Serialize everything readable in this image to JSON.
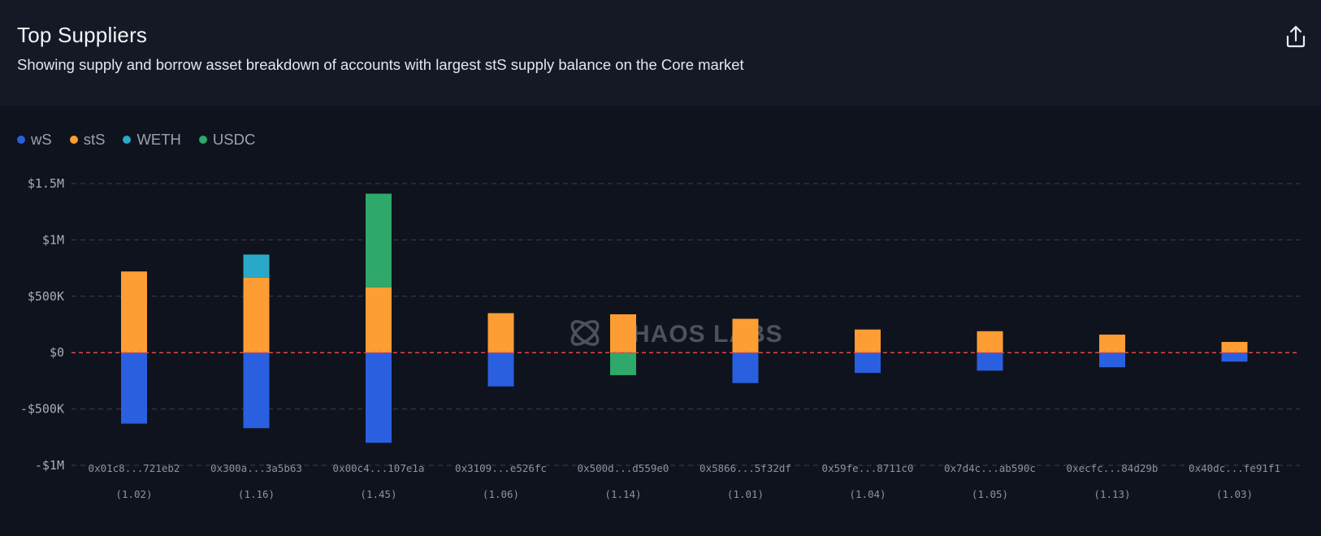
{
  "header": {
    "title": "Top Suppliers",
    "subtitle": "Showing supply and borrow asset breakdown of accounts with largest stS supply balance on the Core market",
    "share_icon": "share-icon"
  },
  "watermark": "HAOS LABS",
  "colors": {
    "wS": "#2a5fe0",
    "stS": "#fd9d33",
    "WETH": "#2aa8c8",
    "USDC": "#2ea86b",
    "zero_line": "#e04848",
    "grid": "#3a404c"
  },
  "chart_data": {
    "type": "bar",
    "stacked": true,
    "title": "Top Suppliers",
    "xlabel": "",
    "ylabel": "",
    "ylim": [
      -1000000,
      1500000
    ],
    "yticks": [
      {
        "value": 1500000,
        "label": "$1.5M"
      },
      {
        "value": 1000000,
        "label": "$1M"
      },
      {
        "value": 500000,
        "label": "$500K"
      },
      {
        "value": 0,
        "label": "$0"
      },
      {
        "value": -500000,
        "label": "-$500K"
      },
      {
        "value": -1000000,
        "label": "-$1M"
      }
    ],
    "grid": true,
    "legend_position": "top-left",
    "legend": [
      "wS",
      "stS",
      "WETH",
      "USDC"
    ],
    "categories": [
      "0x01c8...721eb2",
      "0x300a...3a5b63",
      "0x00c4...107e1a",
      "0x3109...e526fc",
      "0x500d...d559e0",
      "0x5866...5f32df",
      "0x59fe...8711c0",
      "0x7d4c...ab590c",
      "0xecfc...84d29b",
      "0x40dc...fe91f1"
    ],
    "category_sublabels": [
      "(1.02)",
      "(1.16)",
      "(1.45)",
      "(1.06)",
      "(1.14)",
      "(1.01)",
      "(1.04)",
      "(1.05)",
      "(1.13)",
      "(1.03)"
    ],
    "series": [
      {
        "name": "wS",
        "values": [
          -630000,
          -670000,
          -800000,
          -300000,
          0,
          -270000,
          -180000,
          -160000,
          -130000,
          -80000
        ]
      },
      {
        "name": "stS",
        "values": [
          720000,
          665000,
          580000,
          350000,
          340000,
          300000,
          205000,
          190000,
          160000,
          95000
        ]
      },
      {
        "name": "WETH",
        "values": [
          0,
          205000,
          0,
          0,
          0,
          0,
          0,
          0,
          0,
          0
        ]
      },
      {
        "name": "USDC",
        "values": [
          0,
          0,
          830000,
          0,
          -200000,
          0,
          0,
          0,
          0,
          0
        ]
      }
    ]
  }
}
